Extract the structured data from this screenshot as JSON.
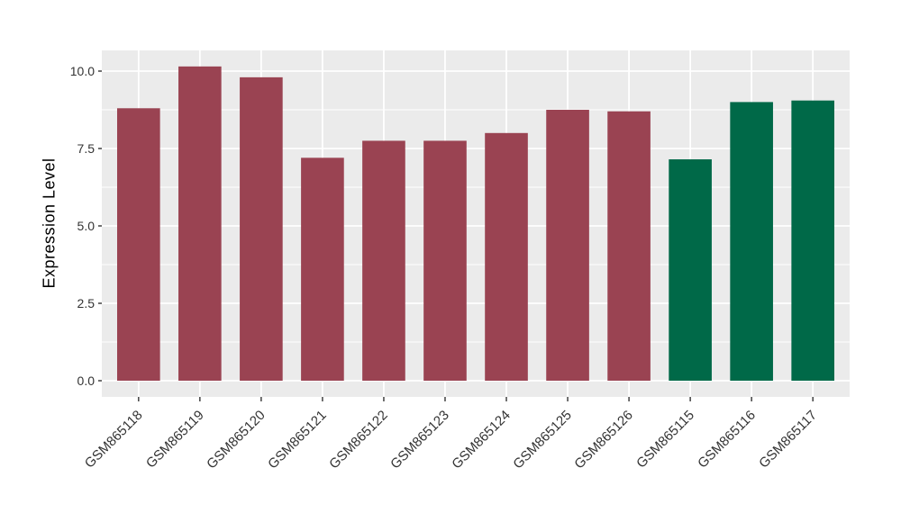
{
  "chart_data": {
    "type": "bar",
    "title": "",
    "xlabel": "",
    "ylabel": "Expression Level",
    "categories": [
      "GSM865118",
      "GSM865119",
      "GSM865120",
      "GSM865121",
      "GSM865122",
      "GSM865123",
      "GSM865124",
      "GSM865125",
      "GSM865126",
      "GSM865115",
      "GSM865116",
      "GSM865117"
    ],
    "values": [
      8.8,
      10.15,
      9.8,
      7.2,
      7.75,
      7.75,
      8.0,
      8.75,
      8.7,
      7.15,
      9.0,
      9.05
    ],
    "bar_colors": [
      "#9A4352",
      "#9A4352",
      "#9A4352",
      "#9A4352",
      "#9A4352",
      "#9A4352",
      "#9A4352",
      "#9A4352",
      "#9A4352",
      "#006948",
      "#006948",
      "#006948"
    ],
    "group_colors": {
      "maroon": "#9A4352",
      "green": "#006948"
    },
    "ylim": [
      -0.51,
      10.66
    ],
    "yticks": {
      "values": [
        0,
        2.5,
        5,
        7.5,
        10
      ],
      "labels": [
        "0.0",
        "2.5",
        "5.0",
        "7.5",
        "10.0"
      ]
    },
    "minor_yticks": [
      1.25,
      3.75,
      6.25,
      8.75
    ],
    "grid": true,
    "legend": false,
    "x_label_angle": 45,
    "bar_width_fraction": 0.7,
    "panel_bg": "#EBEBEB",
    "grid_color": "#FFFFFF",
    "tick_color": "#333333",
    "tick_label_color": "#333333",
    "axis_title_color": "#000000"
  }
}
